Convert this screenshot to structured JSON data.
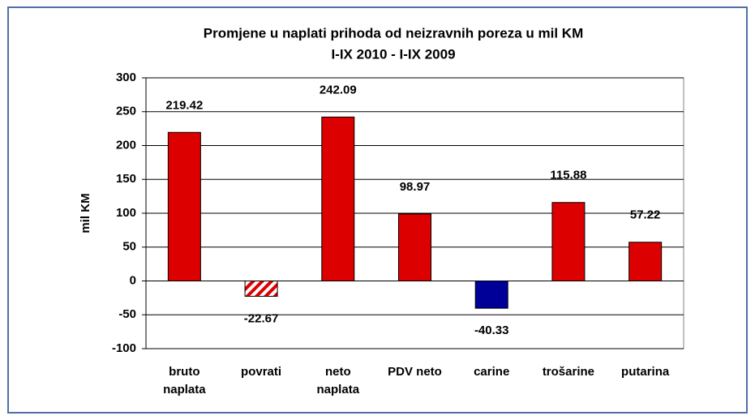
{
  "chart_data": {
    "type": "bar",
    "title": "Promjene u naplati prihoda od neizravnih poreza u mil KM",
    "subtitle": "I-IX 2010 - I-IX 2009",
    "y_label": "mil KM",
    "categories": [
      "bruto\nnaplata",
      "povrati",
      "neto\nnaplata",
      "PDV neto",
      "carine",
      "trošarine",
      "putarina"
    ],
    "values": [
      219.42,
      -22.67,
      242.09,
      98.97,
      -40.33,
      115.88,
      57.22
    ],
    "colors": [
      "#dd0000",
      "#dd0000",
      "#dd0000",
      "#dd0000",
      "#000099",
      "#dd0000",
      "#dd0000"
    ],
    "hatched": [
      false,
      true,
      false,
      false,
      false,
      false,
      false
    ],
    "ylim": [
      -100,
      300
    ],
    "yticks": [
      -100,
      -50,
      0,
      50,
      100,
      150,
      200,
      250,
      300
    ],
    "grid": true
  }
}
